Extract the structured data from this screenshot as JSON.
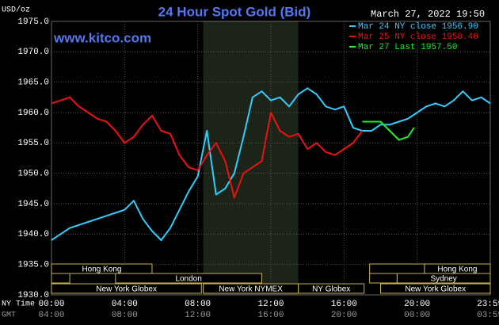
{
  "chart_data": {
    "type": "line",
    "title": "24 Hour Spot Gold (Bid)",
    "timestamp": "March 27, 2022 19:50",
    "website": "www.kitco.com",
    "y_label": "USD/oz",
    "x_label": "NY Time",
    "x2_label": "GMT",
    "grid": true,
    "xlim": [
      0,
      24
    ],
    "ylim": [
      1930,
      1975
    ],
    "xticks": [
      {
        "value": 0,
        "label": "00:00"
      },
      {
        "value": 4,
        "label": "04:00"
      },
      {
        "value": 8,
        "label": "08:00"
      },
      {
        "value": 12,
        "label": "12:00"
      },
      {
        "value": 16,
        "label": "16:00"
      },
      {
        "value": 20,
        "label": "20:00"
      },
      {
        "value": 23.983,
        "label": "23:59"
      }
    ],
    "x2tick_labels": [
      "04:00",
      "08:00",
      "12:00",
      "16:00",
      "20:00",
      "00:00",
      "03:59"
    ],
    "yticks": [
      {
        "value": 1930,
        "label": "1930.0"
      },
      {
        "value": 1935,
        "label": "1935.0"
      },
      {
        "value": 1940,
        "label": "1940.0"
      },
      {
        "value": 1945,
        "label": "1945.0"
      },
      {
        "value": 1950,
        "label": "1950.0"
      },
      {
        "value": 1955,
        "label": "1955.0"
      },
      {
        "value": 1960,
        "label": "1960.0"
      },
      {
        "value": 1965,
        "label": "1965.0"
      },
      {
        "value": 1970,
        "label": "1970.0"
      },
      {
        "value": 1975,
        "label": "1975.0"
      }
    ],
    "sessions": [
      "Hong Kong",
      "London",
      "New York Globex",
      "New York NYMEX",
      "NY Globex",
      "Hong Kong",
      "Sydney",
      "New York Globex"
    ],
    "series": [
      {
        "name": "Mar 24 NY close 1956.90",
        "color": "#33ccff",
        "x": [
          0,
          0.5,
          1,
          1.5,
          2,
          2.5,
          3,
          3.5,
          4,
          4.5,
          5,
          5.5,
          6,
          6.5,
          7,
          7.5,
          8,
          8.5,
          9,
          9.5,
          10,
          10.5,
          11,
          11.5,
          12,
          12.5,
          13,
          13.5,
          14,
          14.5,
          15,
          15.5,
          16,
          16.5,
          17,
          17.5,
          18,
          18.5,
          19,
          19.5,
          20,
          20.5,
          21,
          21.5,
          22,
          22.5,
          23,
          23.5,
          24
        ],
        "values": [
          1939,
          1940,
          1941,
          1941.5,
          1942,
          1942.5,
          1943,
          1943.5,
          1944,
          1945.5,
          1942.5,
          1940.5,
          1939,
          1941,
          1944,
          1947,
          1949.5,
          1957,
          1946.5,
          1947.5,
          1950,
          1956,
          1962.5,
          1963.5,
          1962,
          1962.5,
          1961,
          1963,
          1964,
          1963,
          1961,
          1960.5,
          1961,
          1957.5,
          1957,
          1957,
          1958,
          1958,
          1958.5,
          1959,
          1960,
          1961,
          1961.5,
          1961,
          1962,
          1963.5,
          1962,
          1962.5,
          1961.5
        ]
      },
      {
        "name": "Mar 25 NY close 1958.40",
        "color": "#ee1111",
        "x": [
          0,
          0.5,
          1,
          1.5,
          2,
          2.5,
          3,
          3.5,
          4,
          4.5,
          5,
          5.5,
          6,
          6.5,
          7,
          7.5,
          8,
          8.5,
          9,
          9.5,
          10,
          10.5,
          11,
          11.5,
          12,
          12.5,
          13,
          13.5,
          14,
          14.5,
          15,
          15.5,
          16,
          16.5,
          17
        ],
        "values": [
          1961.5,
          1962,
          1962.5,
          1961,
          1960,
          1959,
          1958.5,
          1957,
          1955,
          1956,
          1958,
          1959.5,
          1957,
          1956.5,
          1953,
          1951,
          1950.5,
          1953,
          1955,
          1952,
          1946,
          1950,
          1951,
          1952,
          1960,
          1957,
          1956,
          1956.5,
          1954,
          1955,
          1953.5,
          1953,
          1954,
          1955,
          1957
        ]
      },
      {
        "name": "Mar 27 Last 1957.50",
        "color": "#22ee22",
        "x": [
          17,
          17.5,
          18,
          18.5,
          19,
          19.5,
          19.83
        ],
        "values": [
          1958.5,
          1958.5,
          1958.5,
          1957,
          1955.5,
          1956,
          1957.5
        ]
      }
    ]
  }
}
